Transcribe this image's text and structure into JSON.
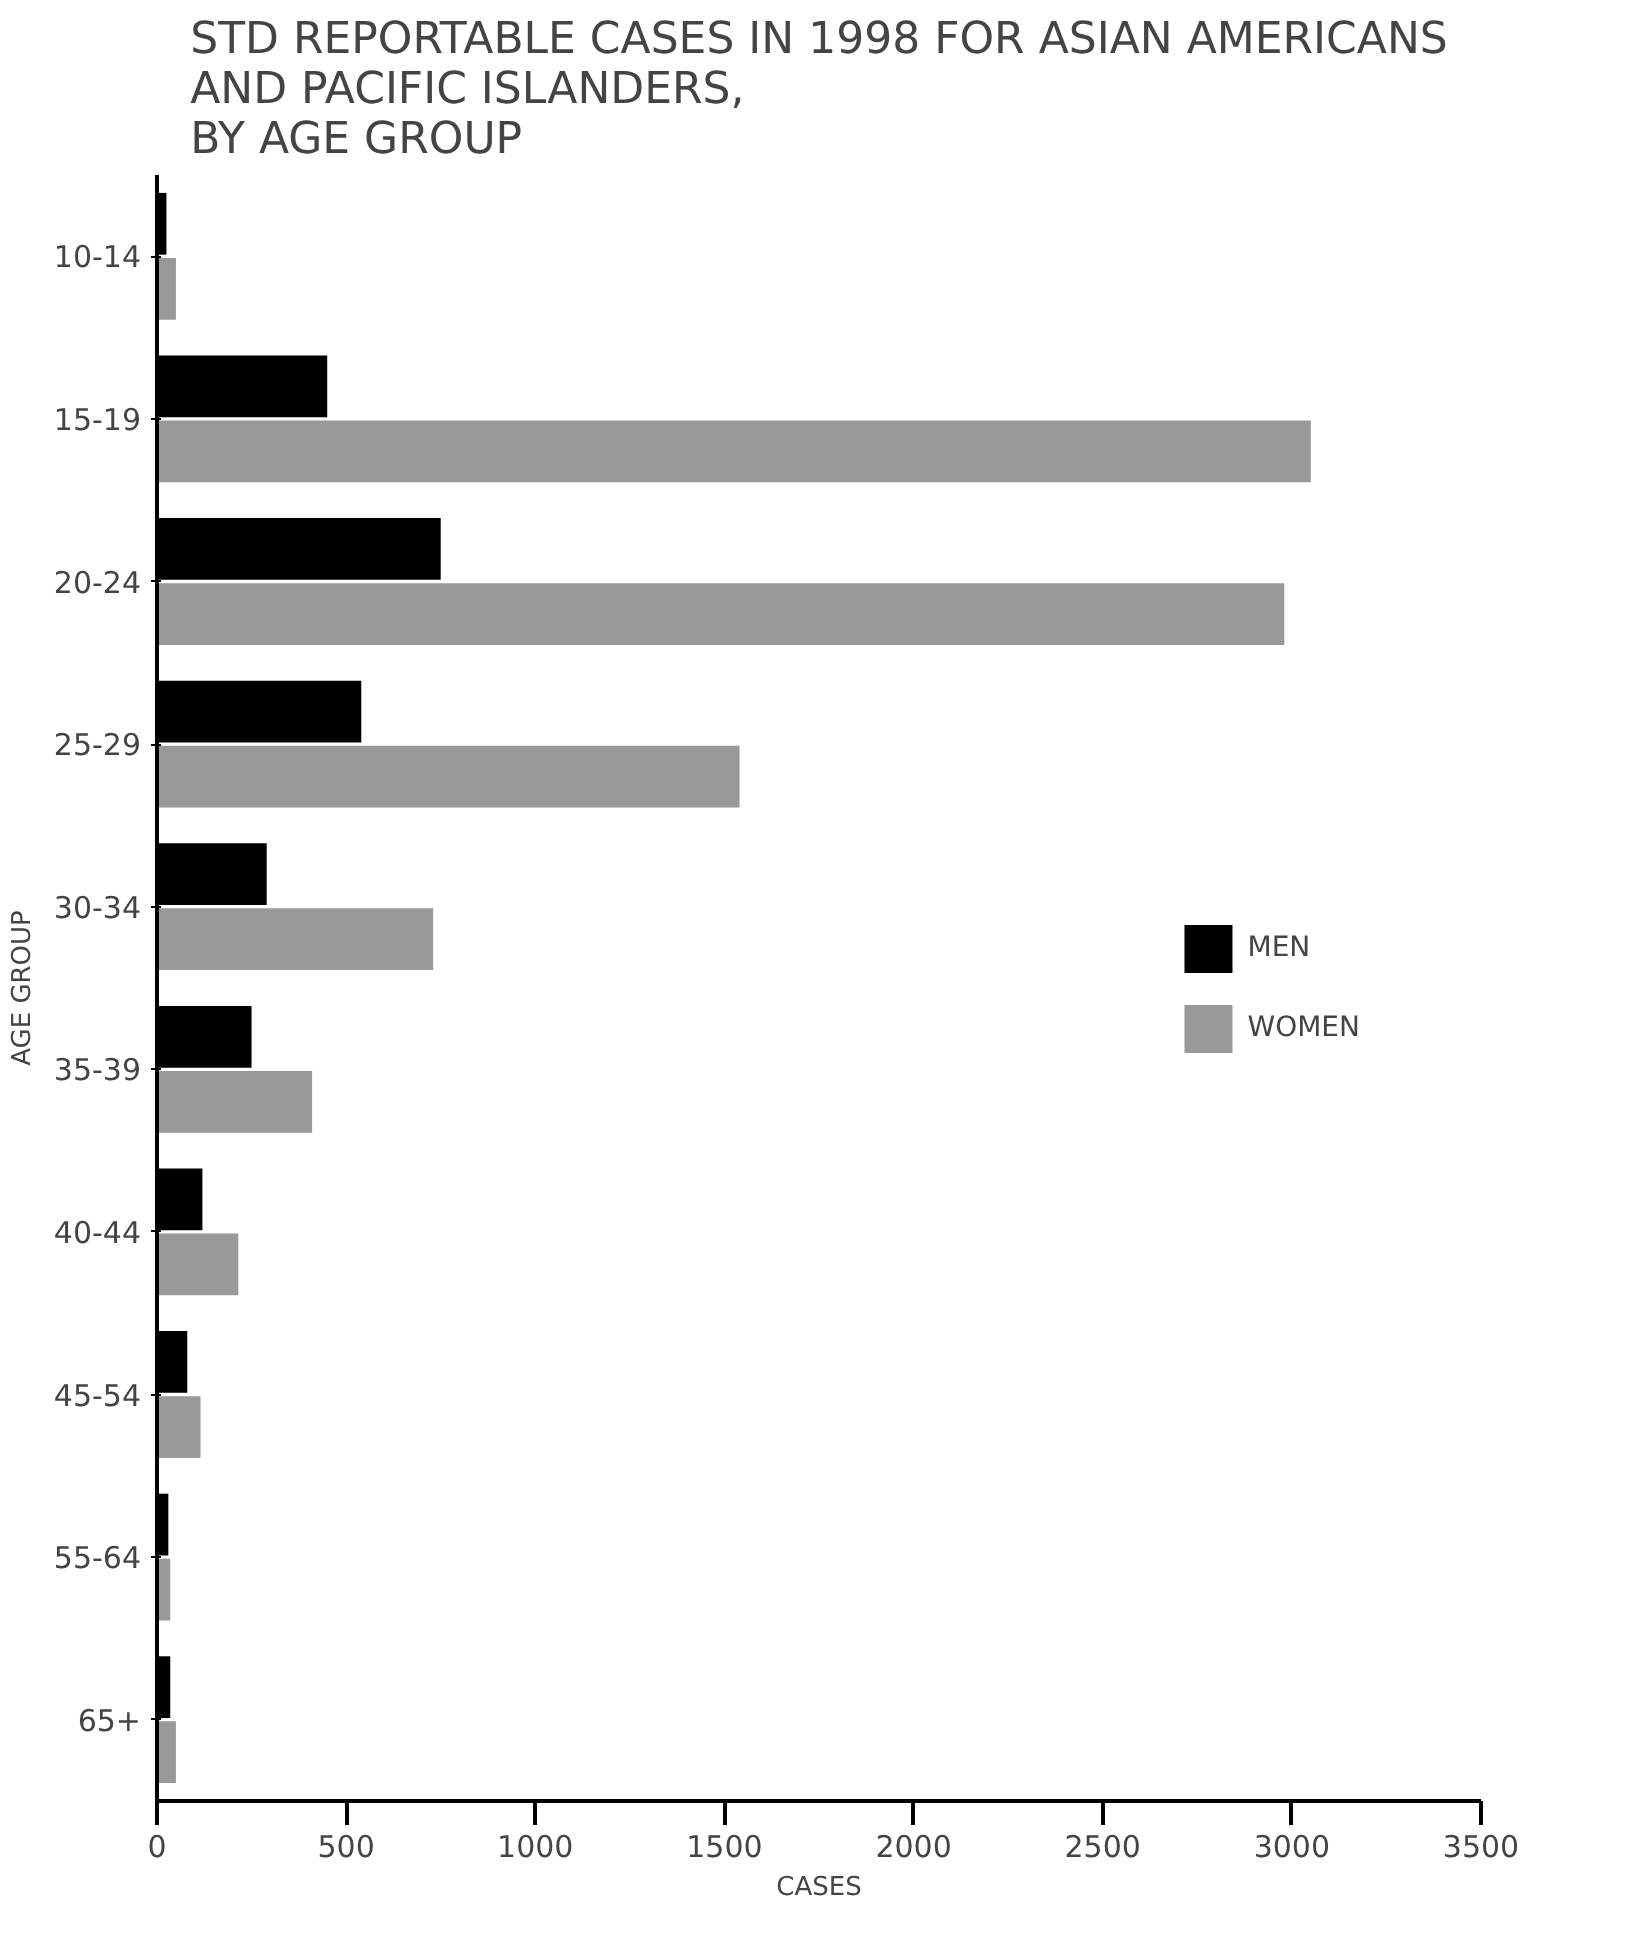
{
  "chart_data": {
    "type": "bar",
    "orientation": "horizontal",
    "title": "STD REPORTABLE CASES IN 1998 FOR ASIAN AMERICANS\nAND PACIFIC ISLANDERS,\nBY AGE GROUP",
    "xlabel": "CASES",
    "ylabel": "AGE GROUP",
    "categories": [
      "10-14",
      "15-19",
      "20-24",
      "25-29",
      "30-34",
      "35-39",
      "40-44",
      "45-54",
      "55-64",
      "65+"
    ],
    "series": [
      {
        "name": "MEN",
        "color": "#000000",
        "values": [
          25,
          450,
          750,
          540,
          290,
          250,
          120,
          80,
          30,
          35
        ]
      },
      {
        "name": "WOMEN",
        "color": "#999999",
        "values": [
          50,
          3050,
          2980,
          1540,
          730,
          410,
          215,
          115,
          35,
          50
        ]
      }
    ],
    "xlim": [
      0,
      3500
    ],
    "xticks": [
      0,
      500,
      1000,
      1500,
      2000,
      2500,
      3000,
      3500
    ],
    "grid": false,
    "legend": "right"
  }
}
